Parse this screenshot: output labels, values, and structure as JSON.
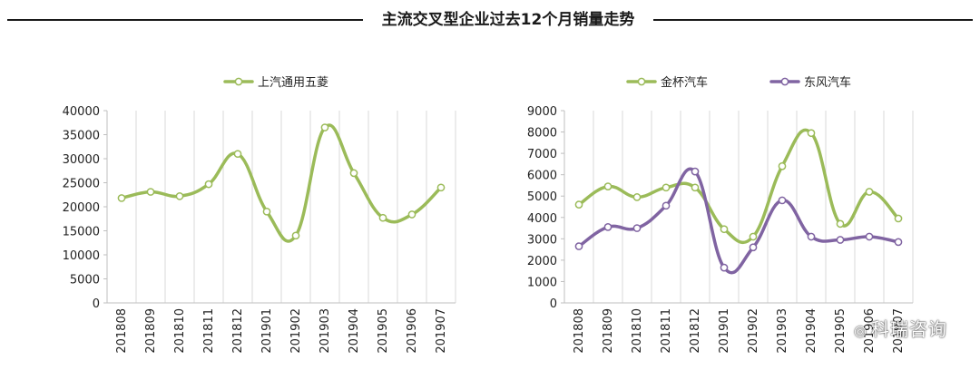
{
  "header": {
    "title": "主流交叉型企业过去12个月销量走势"
  },
  "watermark": {
    "brand": "科瑞咨询",
    "mark": "◎"
  },
  "chart_data": [
    {
      "type": "line",
      "categories": [
        "201808",
        "201809",
        "201810",
        "201811",
        "201812",
        "201901",
        "201902",
        "201903",
        "201904",
        "201905",
        "201906",
        "201907"
      ],
      "series": [
        {
          "name": "上汽通用五菱",
          "color": "#9bbb59",
          "values": [
            21800,
            23100,
            22200,
            24700,
            31000,
            19000,
            14000,
            36500,
            27000,
            17700,
            18400,
            24000
          ]
        }
      ],
      "ylim": [
        0,
        40000
      ],
      "yticks": [
        "0",
        "5000",
        "10000",
        "15000",
        "20000",
        "25000",
        "30000",
        "35000",
        "40000"
      ],
      "grid": "vertical",
      "legend": "top"
    },
    {
      "type": "line",
      "categories": [
        "201808",
        "201809",
        "201810",
        "201811",
        "201812",
        "201901",
        "201902",
        "201903",
        "201904",
        "201905",
        "201906",
        "201907"
      ],
      "series": [
        {
          "name": "金杯汽车",
          "color": "#9bbb59",
          "values": [
            4600,
            5450,
            4950,
            5400,
            5400,
            3450,
            3100,
            6400,
            7950,
            3700,
            5200,
            3950
          ]
        },
        {
          "name": "东风汽车",
          "color": "#8064a2",
          "values": [
            2650,
            3550,
            3500,
            4550,
            6150,
            1650,
            2600,
            4800,
            3100,
            2950,
            3100,
            2850
          ]
        }
      ],
      "ylim": [
        0,
        9000
      ],
      "yticks": [
        "0",
        "1000",
        "2000",
        "3000",
        "4000",
        "5000",
        "6000",
        "7000",
        "8000",
        "9000"
      ],
      "grid": "vertical",
      "legend": "top"
    }
  ]
}
